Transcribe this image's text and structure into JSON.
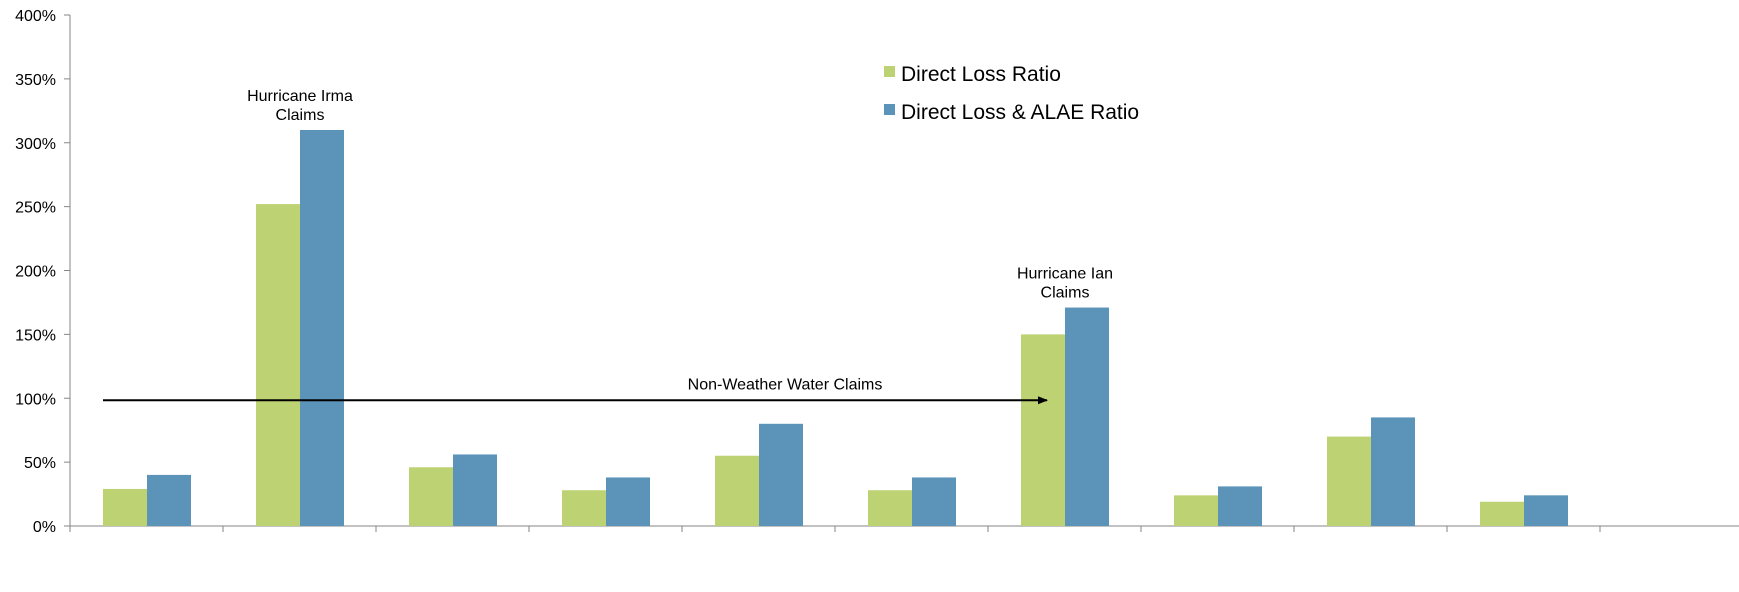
{
  "chart_data": {
    "type": "bar",
    "categories": [
      "",
      "",
      "",
      "",
      "",
      "",
      "",
      "",
      "",
      ""
    ],
    "series": [
      {
        "name": "Direct Loss Ratio",
        "color": "#bdd373",
        "values": [
          29,
          252,
          46,
          28,
          55,
          28,
          150,
          24,
          70,
          19
        ]
      },
      {
        "name": "Direct Loss & ALAE Ratio",
        "color": "#5b93b9",
        "values": [
          40,
          310,
          56,
          38,
          80,
          38,
          171,
          31,
          85,
          24
        ]
      }
    ],
    "ylim": [
      0,
      400
    ],
    "yticks": [
      "0%",
      "50%",
      "100%",
      "150%",
      "200%",
      "250%",
      "300%",
      "350%",
      "400%"
    ],
    "ytick_values": [
      0,
      50,
      100,
      150,
      200,
      250,
      300,
      350,
      400
    ],
    "grid": false,
    "legend_position": "top-right",
    "annotations": [
      {
        "lines": [
          "Hurricane Irma",
          "Claims"
        ],
        "category_index": 1
      },
      {
        "lines": [
          "Hurricane Ian",
          "Claims"
        ],
        "category_index": 6
      },
      {
        "lines": [
          "Non-Weather Water Claims"
        ],
        "category_index": 4
      }
    ],
    "arrow": {
      "y_value": 100,
      "from_category": 0,
      "to_category": 6
    }
  }
}
